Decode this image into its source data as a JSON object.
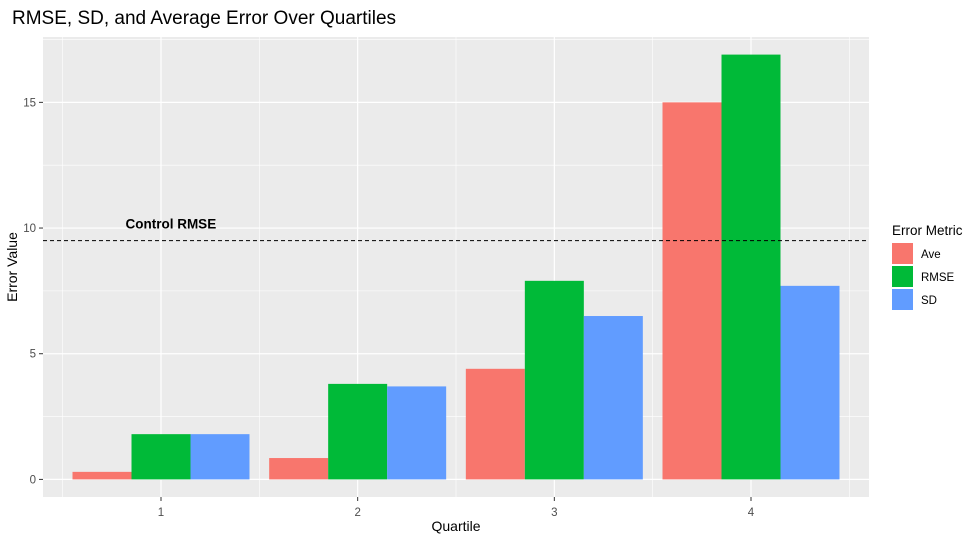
{
  "chart_data": {
    "type": "bar",
    "title": "RMSE, SD, and Average Error Over Quartiles",
    "xlabel": "Quartile",
    "ylabel": "Error Value",
    "categories": [
      "1",
      "2",
      "3",
      "4"
    ],
    "ylim": [
      -0.7,
      17.6
    ],
    "yticks": [
      0,
      5,
      10,
      15
    ],
    "series": [
      {
        "name": "Ave",
        "color": "#F8766D",
        "values": [
          0.3,
          0.85,
          4.4,
          15.0
        ]
      },
      {
        "name": "RMSE",
        "color": "#00BA38",
        "values": [
          1.8,
          3.8,
          7.9,
          16.9
        ]
      },
      {
        "name": "SD",
        "color": "#619CFF",
        "values": [
          1.8,
          3.7,
          6.5,
          7.7
        ]
      }
    ],
    "reference_line": {
      "value": 9.5,
      "style": "dashed",
      "label": "Control RMSE"
    },
    "legend": {
      "title": "Error Metric",
      "position": "right"
    },
    "panel_background": "#EBEBEB",
    "grid": true
  }
}
